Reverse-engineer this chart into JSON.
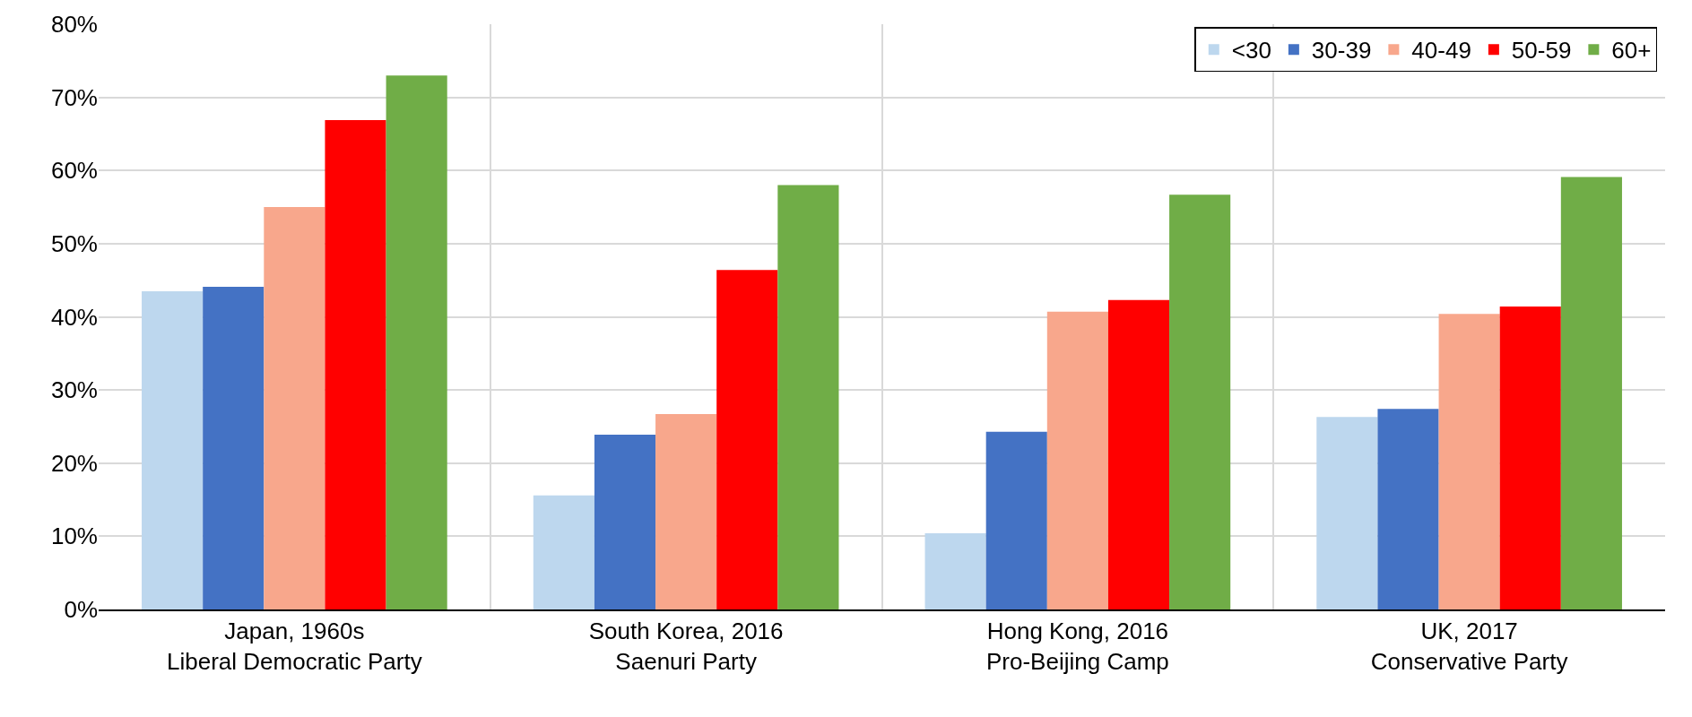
{
  "chart_data": {
    "type": "bar",
    "categories": [
      "Japan, 1960s\nLiberal Democratic Party",
      "South Korea, 2016\nSaenuri Party",
      "Hong Kong, 2016\nPro-Beijing Camp",
      "UK, 2017\nConservative Party"
    ],
    "series": [
      {
        "name": "<30",
        "color": "#bdd7ee",
        "values": [
          43.5,
          15.6,
          10.4,
          26.3
        ]
      },
      {
        "name": "30-39",
        "color": "#4472c4",
        "values": [
          44.1,
          23.9,
          24.3,
          27.4
        ]
      },
      {
        "name": "40-49",
        "color": "#f8a78c",
        "values": [
          55.0,
          26.7,
          40.7,
          40.4
        ]
      },
      {
        "name": "50-59",
        "color": "#ff0000",
        "values": [
          66.9,
          46.4,
          42.3,
          41.4
        ]
      },
      {
        "name": "60+",
        "color": "#70ad47",
        "values": [
          73.0,
          58.0,
          56.7,
          59.1
        ]
      }
    ],
    "ylim": [
      0,
      80
    ],
    "yticks": [
      {
        "value": 0,
        "label": "0%"
      },
      {
        "value": 10,
        "label": "10%"
      },
      {
        "value": 20,
        "label": "20%"
      },
      {
        "value": 30,
        "label": "30%"
      },
      {
        "value": 40,
        "label": "40%"
      },
      {
        "value": 50,
        "label": "50%"
      },
      {
        "value": 60,
        "label": "60%"
      },
      {
        "value": 70,
        "label": "70%"
      },
      {
        "value": 80,
        "label": "80%"
      }
    ],
    "grid": true,
    "legend": "top right"
  }
}
